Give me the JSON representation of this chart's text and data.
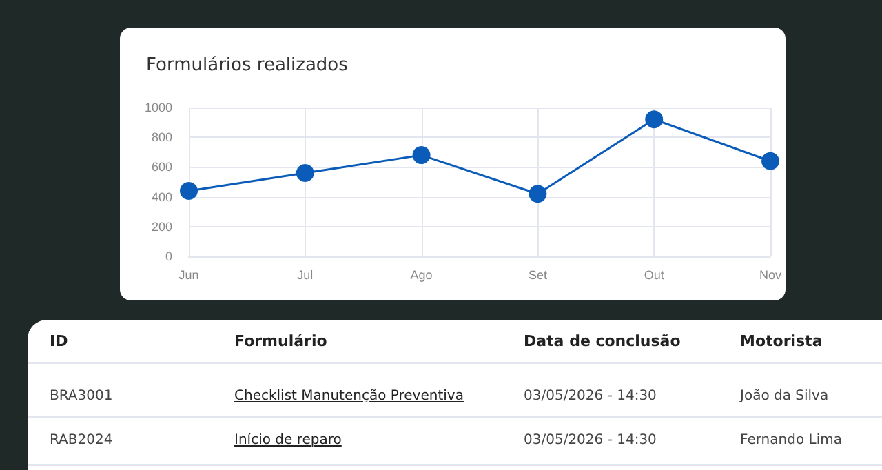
{
  "chart_data": [
    {
      "type": "line",
      "title": "Formulários realizados",
      "categories": [
        "Jun",
        "Jul",
        "Ago",
        "Set",
        "Out",
        "Nov"
      ],
      "series": [
        {
          "color": "#0b5cb8",
          "values": [
            440,
            560,
            680,
            420,
            920,
            640
          ]
        }
      ],
      "ylim": [
        0,
        1000
      ],
      "yticks": [
        0,
        200,
        400,
        600,
        800,
        1000
      ],
      "grid": true,
      "marker": "circle"
    },
    {
      "type": "other",
      "annotations": [
        "ID",
        "Formulário",
        "Data de conclusão",
        "Motorista",
        "BRA3001",
        "Checklist Manutenção Preventiva",
        "03/05/2026 - 14:30",
        "João da Silva",
        "RAB2024",
        "Início de reparo",
        "03/05/2026 - 14:30",
        "Fernando Lima"
      ]
    }
  ]
}
